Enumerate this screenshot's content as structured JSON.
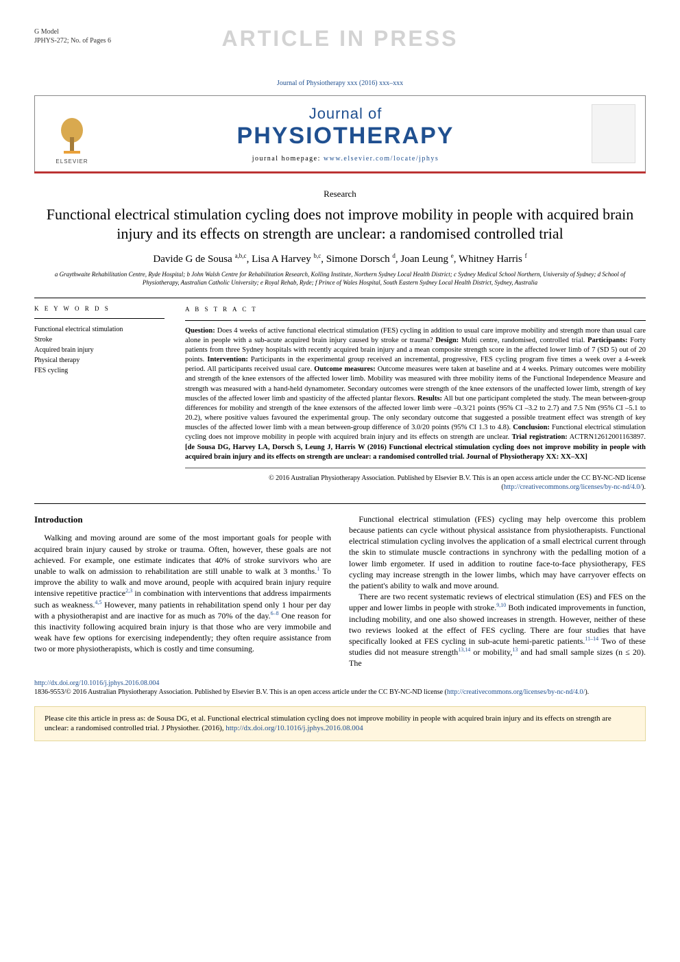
{
  "gmodel": {
    "line1": "G Model",
    "line2": "JPHYS-272; No. of Pages 6"
  },
  "watermark": "ARTICLE IN PRESS",
  "journal_small": "Journal of Physiotherapy xxx (2016) xxx–xxx",
  "masthead": {
    "logo_label": "ELSEVIER",
    "small": "Journal of",
    "big": "PHYSIOTHERAPY",
    "home_prefix": "journal homepage: ",
    "home_url": "www.elsevier.com/locate/jphys",
    "logo_colors": {
      "trunk": "#a47c3a",
      "leaves": "#d9a94f",
      "band": "#e9a13b"
    }
  },
  "accent_color": "#b0302a",
  "section_label": "Research",
  "title": "Functional electrical stimulation cycling does not improve mobility in people with acquired brain injury and its effects on strength are unclear: a randomised controlled trial",
  "authors_html": "Davide G de Sousa <sup>a,b,c</sup>, Lisa A Harvey <sup>b,c</sup>, Simone Dorsch <sup>d</sup>, Joan Leung <sup>e</sup>, Whitney Harris <sup>f</sup>",
  "affiliations": "a Graythwaite Rehabilitation Centre, Ryde Hospital; b John Walsh Centre for Rehabilitation Research, Kolling Institute, Northern Sydney Local Health District; c Sydney Medical School Northern, University of Sydney; d School of Physiotherapy, Australian Catholic University; e Royal Rehab, Ryde; f Prince of Wales Hospital, South Eastern Sydney Local Health District, Sydney, Australia",
  "keywords": {
    "heading": "K E Y   W O R D S",
    "items": [
      "Functional electrical stimulation",
      "Stroke",
      "Acquired brain injury",
      "Physical therapy",
      "FES cycling"
    ]
  },
  "abstract": {
    "heading": "A B S T R A C T",
    "question_label": "Question:",
    "question": " Does 4 weeks of active functional electrical stimulation (FES) cycling in addition to usual care improve mobility and strength more than usual care alone in people with a sub-acute acquired brain injury caused by stroke or trauma? ",
    "design_label": "Design:",
    "design": " Multi centre, randomised, controlled trial. ",
    "participants_label": "Participants:",
    "participants": " Forty patients from three Sydney hospitals with recently acquired brain injury and a mean composite strength score in the affected lower limb of 7 (SD 5) out of 20 points. ",
    "intervention_label": "Intervention:",
    "intervention": " Participants in the experimental group received an incremental, progressive, FES cycling program five times a week over a 4-week period. All participants received usual care. ",
    "outcome_label": "Outcome measures:",
    "outcome": " Outcome measures were taken at baseline and at 4 weeks. Primary outcomes were mobility and strength of the knee extensors of the affected lower limb. Mobility was measured with three mobility items of the Functional Independence Measure and strength was measured with a hand-held dynamometer. Secondary outcomes were strength of the knee extensors of the unaffected lower limb, strength of key muscles of the affected lower limb and spasticity of the affected plantar flexors. ",
    "results_label": "Results:",
    "results": " All but one participant completed the study. The mean between-group differences for mobility and strength of the knee extensors of the affected lower limb were –0.3/21 points (95% CI –3.2 to 2.7) and 7.5 Nm (95% CI –5.1 to 20.2), where positive values favoured the experimental group. The only secondary outcome that suggested a possible treatment effect was strength of key muscles of the affected lower limb with a mean between-group difference of 3.0/20 points (95% CI 1.3 to 4.8). ",
    "conclusion_label": "Conclusion:",
    "conclusion": " Functional electrical stimulation cycling does not improve mobility in people with acquired brain injury and its effects on strength are unclear. ",
    "trial_label": "Trial registration:",
    "trial": " ACTRN12612001163897. ",
    "citation": "[de Sousa DG, Harvey LA, Dorsch S, Leung J, Harris W (2016) Functional electrical stimulation cycling does not improve mobility in people with acquired brain injury and its effects on strength are unclear: a randomised controlled trial. Journal of Physiotherapy XX: XX–XX]",
    "copyright": "© 2016 Australian Physiotherapy Association. Published by Elsevier B.V. This is an open access article under the CC BY-NC-ND license (",
    "cc_url": "http://creativecommons.org/licenses/by-nc-nd/4.0/",
    "copyright_close": ")."
  },
  "body": {
    "heading": "Introduction",
    "p1a": "Walking and moving around are some of the most important goals for people with acquired brain injury caused by stroke or trauma. Often, however, these goals are not achieved. For example, one estimate indicates that 40% of stroke survivors who are unable to walk on admission to rehabilitation are still unable to walk at 3 months.",
    "ref1": "1",
    "p1b": " To improve the ability to walk and move around, people with acquired brain injury require intensive repetitive practice",
    "ref2": "2,3",
    "p1c": " in combination with interventions that address impairments such as weakness.",
    "ref3": "4,5",
    "p1d": " However, many patients in rehabilitation spend only 1 hour per day with a physiotherapist and are inactive for as much as 70% of the day.",
    "ref4": "6–8",
    "p1e": " One reason for this inactivity following acquired brain injury is that those who are very immobile and weak have few options for exercising independently; they often require assistance from two or more physiotherapists, which is costly and time consuming.",
    "p2": "Functional electrical stimulation (FES) cycling may help overcome this problem because patients can cycle without physical assistance from physiotherapists. Functional electrical stimulation cycling involves the application of a small electrical current through the skin to stimulate muscle contractions in synchrony with the pedalling motion of a lower limb ergometer. If used in addition to routine face-to-face physiotherapy, FES cycling may increase strength in the lower limbs, which may have carryover effects on the patient's ability to walk and move around.",
    "p3a": "There are two recent systematic reviews of electrical stimulation (ES) and FES on the upper and lower limbs in people with stroke.",
    "ref5": "9,10",
    "p3b": " Both indicated improvements in function, including mobility, and one also showed increases in strength. However, neither of these two reviews looked at the effect of FES cycling. There are four studies that have specifically looked at FES cycling in sub-acute hemi-paretic patients.",
    "ref6": "11–14",
    "p3c": " Two of these studies did not measure strength",
    "ref7": "13,14",
    "p3d": " or mobility,",
    "ref8": "13",
    "p3e": " and had small sample sizes (n ≤ 20). The"
  },
  "footer": {
    "doi": "http://dx.doi.org/10.1016/j.jphys.2016.08.004",
    "text": "1836-9553/© 2016 Australian Physiotherapy Association. Published by Elsevier B.V. This is an open access article under the CC BY-NC-ND license (",
    "cc_url": "http://creativecommons.org/licenses/by-nc-nd/4.0/",
    "close": ")."
  },
  "citebox": {
    "text": "Please cite this article in press as: de Sousa DG, et al. Functional electrical stimulation cycling does not improve mobility in people with acquired brain injury and its effects on strength are unclear: a randomised controlled trial. J Physiother. (2016), ",
    "url": "http://dx.doi.org/10.1016/j.jphys.2016.08.004"
  },
  "colors": {
    "accent": "#b0302a",
    "link": "#205090",
    "citebox_bg": "#fff6df",
    "citebox_border": "#e4d79a"
  }
}
